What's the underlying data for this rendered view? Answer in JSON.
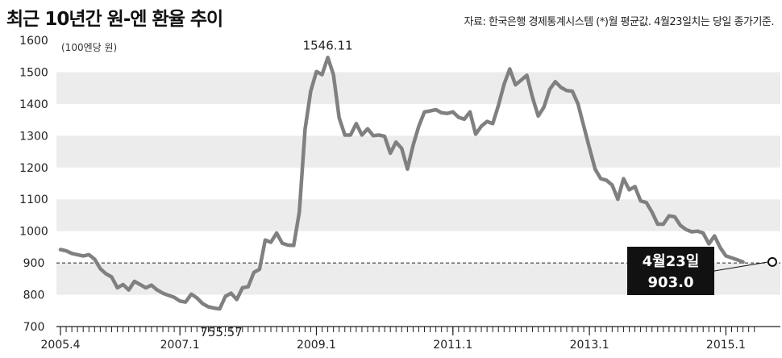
{
  "chart_data": {
    "type": "line",
    "title": "최근 10년간 원-엔 환율 추이",
    "source": "자료: 한국은행 경제통계시스템 (*)월 평균값. 4월23일치는 당일 종가기준.",
    "unit_label": "(100엔당 원)",
    "xlabel": "",
    "ylabel": "",
    "ylim": [
      700,
      1600
    ],
    "yticks": [
      700,
      800,
      900,
      1000,
      1100,
      1200,
      1300,
      1400,
      1500,
      1600
    ],
    "x_start": "2005.4",
    "x_ticks": [
      "2005.4",
      "2007.1",
      "2009.1",
      "2011.1",
      "2013.1",
      "2015.1"
    ],
    "grid": "horizontal bands",
    "reference_line": 900,
    "annotations": [
      {
        "label": "1546.11",
        "value": 1546.11
      },
      {
        "label": "755.57",
        "value": 755.57
      }
    ],
    "callout": {
      "line1": "4월23일",
      "line2": "903.0",
      "value": 903.0
    },
    "series": [
      {
        "values": [
          942,
          938,
          930,
          926,
          922,
          926,
          912,
          882,
          866,
          856,
          822,
          832,
          815,
          842,
          832,
          822,
          830,
          815,
          805,
          798,
          792,
          780,
          777,
          802,
          790,
          772,
          762,
          758,
          755.57,
          795,
          805,
          785,
          822,
          825,
          870,
          880,
          972,
          965,
          994,
          962,
          956,
          955,
          1060,
          1320,
          1440,
          1502,
          1492,
          1546.11,
          1492,
          1356,
          1302,
          1302,
          1338,
          1302,
          1322,
          1300,
          1302,
          1298,
          1245,
          1280,
          1260,
          1195,
          1270,
          1330,
          1375,
          1378,
          1382,
          1372,
          1370,
          1375,
          1358,
          1352,
          1375,
          1305,
          1330,
          1345,
          1338,
          1395,
          1462,
          1510,
          1460,
          1475,
          1490,
          1420,
          1362,
          1390,
          1445,
          1470,
          1452,
          1442,
          1440,
          1400,
          1330,
          1262,
          1195,
          1165,
          1160,
          1145,
          1100,
          1165,
          1130,
          1140,
          1095,
          1090,
          1060,
          1022,
          1022,
          1048,
          1045,
          1018,
          1005,
          998,
          1000,
          994,
          960,
          985,
          948,
          922,
          916,
          910,
          903
        ]
      }
    ]
  }
}
